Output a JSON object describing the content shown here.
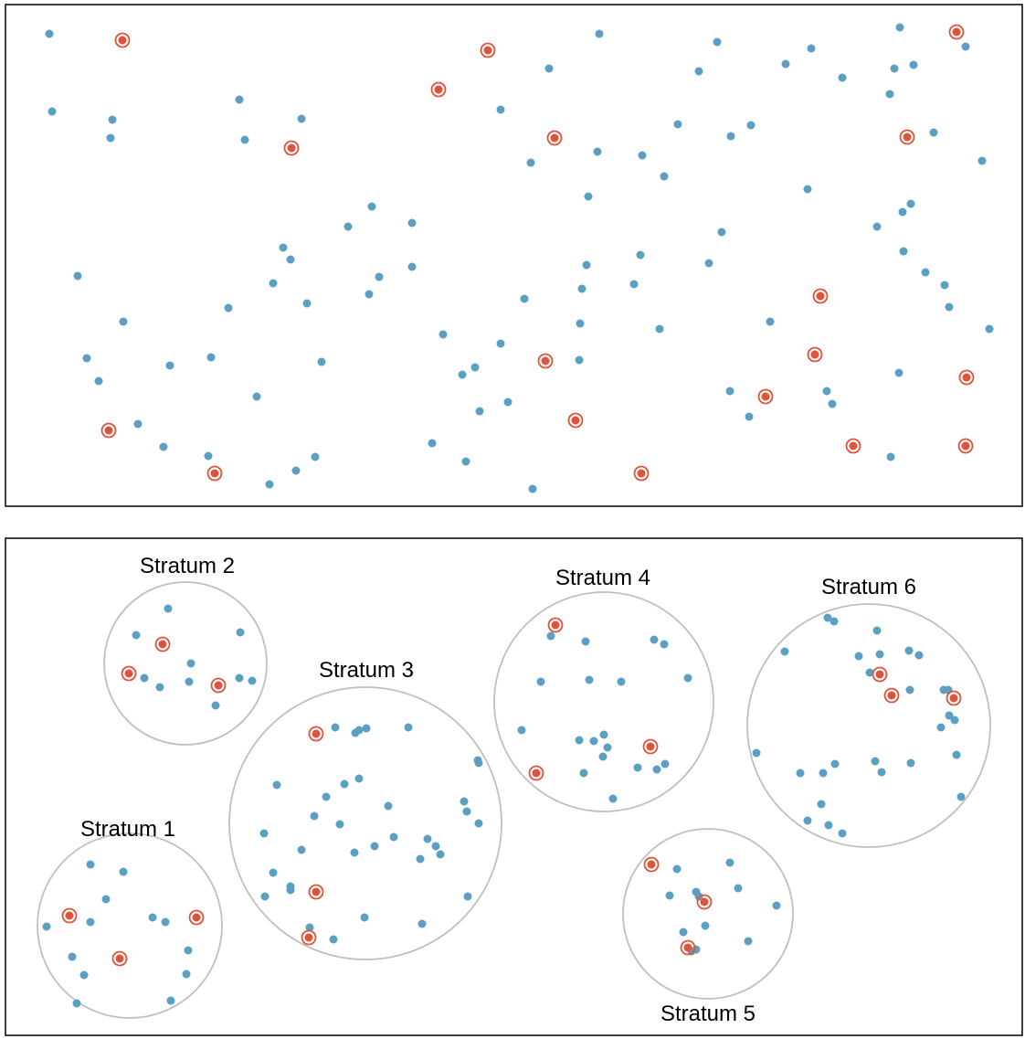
{
  "colors": {
    "dot": "#5b9fc3",
    "selected": "#e0533a",
    "stratum_outline": "#bfbfbf",
    "frame": "#000000"
  },
  "panels": {
    "simple_random_sample": {
      "population": [
        [
          54,
          37
        ],
        [
          57,
          122
        ],
        [
          123,
          131
        ],
        [
          121,
          151
        ],
        [
          262,
          109
        ],
        [
          268,
          153
        ],
        [
          330,
          130
        ],
        [
          656,
          37
        ],
        [
          785,
          46
        ],
        [
          860,
          70
        ],
        [
          888,
          53
        ],
        [
          985,
          30
        ],
        [
          979,
          75
        ],
        [
          1000,
          71
        ],
        [
          1057,
          51
        ],
        [
          601,
          75
        ],
        [
          548,
          120
        ],
        [
          765,
          78
        ],
        [
          922,
          85
        ],
        [
          974,
          103
        ],
        [
          742,
          136
        ],
        [
          822,
          137
        ],
        [
          800,
          149
        ],
        [
          1022,
          145
        ],
        [
          581,
          178
        ],
        [
          654,
          166
        ],
        [
          703,
          170
        ],
        [
          727,
          193
        ],
        [
          1075,
          176
        ],
        [
          644,
          215
        ],
        [
          884,
          207
        ],
        [
          997,
          223
        ],
        [
          988,
          232
        ],
        [
          960,
          248
        ],
        [
          407,
          226
        ],
        [
          381,
          248
        ],
        [
          451,
          244
        ],
        [
          310,
          271
        ],
        [
          318,
          284
        ],
        [
          299,
          310
        ],
        [
          415,
          303
        ],
        [
          404,
          322
        ],
        [
          451,
          292
        ],
        [
          336,
          332
        ],
        [
          250,
          337
        ],
        [
          85,
          302
        ],
        [
          135,
          352
        ],
        [
          95,
          392
        ],
        [
          108,
          417
        ],
        [
          186,
          400
        ],
        [
          231,
          391
        ],
        [
          352,
          396
        ],
        [
          281,
          434
        ],
        [
          642,
          290
        ],
        [
          701,
          279
        ],
        [
          637,
          316
        ],
        [
          694,
          311
        ],
        [
          574,
          327
        ],
        [
          635,
          354
        ],
        [
          485,
          366
        ],
        [
          548,
          376
        ],
        [
          520,
          402
        ],
        [
          506,
          410
        ],
        [
          634,
          394
        ],
        [
          556,
          440
        ],
        [
          525,
          450
        ],
        [
          790,
          254
        ],
        [
          776,
          288
        ],
        [
          989,
          275
        ],
        [
          1013,
          298
        ],
        [
          1034,
          312
        ],
        [
          1039,
          336
        ],
        [
          1083,
          360
        ],
        [
          843,
          352
        ],
        [
          722,
          360
        ],
        [
          984,
          408
        ],
        [
          905,
          428
        ],
        [
          799,
          428
        ],
        [
          911,
          442
        ],
        [
          820,
          456
        ],
        [
          151,
          464
        ],
        [
          179,
          489
        ],
        [
          228,
          499
        ],
        [
          324,
          515
        ],
        [
          345,
          500
        ],
        [
          295,
          530
        ],
        [
          473,
          485
        ],
        [
          510,
          505
        ],
        [
          583,
          535
        ],
        [
          975,
          500
        ]
      ],
      "selected": [
        [
          134,
          44
        ],
        [
          534,
          55
        ],
        [
          480,
          98
        ],
        [
          319,
          162
        ],
        [
          607,
          151
        ],
        [
          1047,
          35
        ],
        [
          993,
          150
        ],
        [
          898,
          324
        ],
        [
          892,
          388
        ],
        [
          597,
          395
        ],
        [
          838,
          434
        ],
        [
          1058,
          413
        ],
        [
          119,
          471
        ],
        [
          630,
          460
        ],
        [
          934,
          488
        ],
        [
          1057,
          488
        ],
        [
          235,
          518
        ],
        [
          702,
          518
        ]
      ]
    },
    "stratified_sample": {
      "strata": [
        {
          "label": "Stratum 1",
          "points": [
            [
              99,
              946
            ],
            [
              135,
              954
            ],
            [
              116,
              984
            ],
            [
              99,
              1009
            ],
            [
              51,
              1014
            ],
            [
              167,
              1004
            ],
            [
              181,
              1009
            ],
            [
              79,
              1047
            ],
            [
              92,
              1067
            ],
            [
              206,
              1040
            ],
            [
              204,
              1066
            ],
            [
              187,
              1095
            ],
            [
              84,
              1098
            ]
          ],
          "selected": [
            [
              76,
              1002
            ],
            [
              215,
              1004
            ],
            [
              131,
              1049
            ]
          ]
        },
        {
          "label": "Stratum 2",
          "points": [
            [
              184,
              666
            ],
            [
              149,
              695
            ],
            [
              263,
              692
            ],
            [
              209,
              726
            ],
            [
              158,
              742
            ],
            [
              276,
              745
            ],
            [
              175,
              752
            ],
            [
              207,
              746
            ],
            [
              262,
              742
            ],
            [
              236,
              772
            ]
          ],
          "selected": [
            [
              178,
              705
            ],
            [
              141,
              737
            ],
            [
              239,
              750
            ]
          ]
        },
        {
          "label": "Stratum 3",
          "points": [
            [
              393,
              799
            ],
            [
              367,
              796
            ],
            [
              401,
              797
            ],
            [
              389,
              802
            ],
            [
              447,
              796
            ],
            [
              523,
              832
            ],
            [
              524,
              835
            ],
            [
              303,
              859
            ],
            [
              393,
              852
            ],
            [
              377,
              858
            ],
            [
              357,
              872
            ],
            [
              425,
              882
            ],
            [
              344,
              893
            ],
            [
              372,
              902
            ],
            [
              289,
              912
            ],
            [
              508,
              877
            ],
            [
              511,
              888
            ],
            [
              524,
              901
            ],
            [
              468,
              918
            ],
            [
              477,
              926
            ],
            [
              482,
              935
            ],
            [
              410,
              926
            ],
            [
              431,
              916
            ],
            [
              388,
              933
            ],
            [
              460,
              940
            ],
            [
              330,
              930
            ],
            [
              299,
              955
            ],
            [
              318,
              970
            ],
            [
              318,
              974
            ],
            [
              290,
              981
            ],
            [
              512,
              981
            ],
            [
              399,
              1004
            ],
            [
              339,
              1015
            ],
            [
              462,
              1011
            ],
            [
              365,
              1028
            ]
          ],
          "selected": [
            [
              346,
              803
            ],
            [
              346,
              976
            ],
            [
              338,
              1026
            ]
          ]
        },
        {
          "label": "Stratum 4",
          "points": [
            [
              603,
              696
            ],
            [
              641,
              702
            ],
            [
              716,
              700
            ],
            [
              727,
              705
            ],
            [
              592,
              746
            ],
            [
              645,
              744
            ],
            [
              680,
              746
            ],
            [
              753,
              742
            ],
            [
              571,
              799
            ],
            [
              634,
              810
            ],
            [
              661,
              804
            ],
            [
              650,
              811
            ],
            [
              665,
              818
            ],
            [
              660,
              828
            ],
            [
              639,
              846
            ],
            [
              698,
              840
            ],
            [
              719,
              842
            ],
            [
              728,
              836
            ],
            [
              671,
              874
            ]
          ],
          "selected": [
            [
              608,
              684
            ],
            [
              712,
              817
            ],
            [
              587,
              846
            ]
          ]
        },
        {
          "label": "Stratum 6",
          "points": [
            [
              906,
              676
            ],
            [
              913,
              680
            ],
            [
              859,
              713
            ],
            [
              960,
              690
            ],
            [
              940,
              718
            ],
            [
              963,
              716
            ],
            [
              995,
              712
            ],
            [
              1006,
              717
            ],
            [
              952,
              736
            ],
            [
              996,
              755
            ],
            [
              1033,
              755
            ],
            [
              1038,
              755
            ],
            [
              1039,
              783
            ],
            [
              1045,
              788
            ],
            [
              1030,
              796
            ],
            [
              1047,
              826
            ],
            [
              828,
              824
            ],
            [
              914,
              836
            ],
            [
              958,
              833
            ],
            [
              965,
              845
            ],
            [
              997,
              835
            ],
            [
              876,
              846
            ],
            [
              901,
              846
            ],
            [
              899,
              880
            ],
            [
              884,
              898
            ],
            [
              907,
              903
            ],
            [
              922,
              912
            ],
            [
              1052,
              872
            ]
          ],
          "selected": [
            [
              963,
              738
            ],
            [
              976,
              761
            ],
            [
              1044,
              764
            ]
          ]
        },
        {
          "label": "Stratum 5",
          "points": [
            [
              741,
              951
            ],
            [
              799,
              944
            ],
            [
              808,
              972
            ],
            [
              733,
              980
            ],
            [
              762,
              976
            ],
            [
              765,
              981
            ],
            [
              850,
              991
            ],
            [
              772,
              1013
            ],
            [
              748,
              1020
            ],
            [
              819,
              1030
            ],
            [
              762,
              1039
            ],
            [
              757,
              1041
            ]
          ],
          "selected": [
            [
              713,
              946
            ],
            [
              771,
              987
            ],
            [
              753,
              1037
            ]
          ]
        }
      ]
    }
  }
}
